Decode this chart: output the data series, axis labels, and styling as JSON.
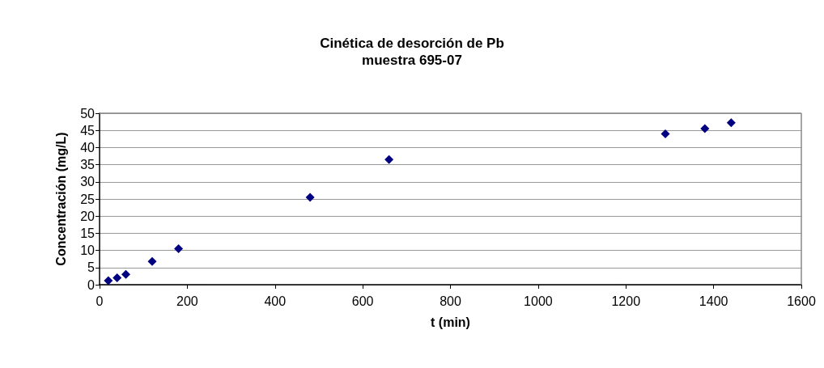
{
  "chart_data": {
    "type": "scatter",
    "title": "Cinética de desorción de Pb",
    "subtitle": "muestra 695-07",
    "xlabel": "t (min)",
    "ylabel": "Concentración (mg/L)",
    "x": [
      20,
      40,
      60,
      120,
      180,
      480,
      660,
      1290,
      1380,
      1440
    ],
    "series": [
      {
        "color": "#000080",
        "values": [
          1.2,
          2,
          3,
          6.8,
          10.5,
          25.5,
          36.5,
          44,
          45.5,
          47.2
        ]
      }
    ],
    "xlim": [
      0,
      1600
    ],
    "xticks": [
      0,
      200,
      400,
      600,
      800,
      1000,
      1200,
      1400,
      1600
    ],
    "ylim": [
      0,
      50
    ],
    "yticks": [
      0,
      5,
      10,
      15,
      20,
      25,
      30,
      35,
      40,
      45,
      50
    ],
    "grid": "y",
    "marker": "diamond"
  }
}
